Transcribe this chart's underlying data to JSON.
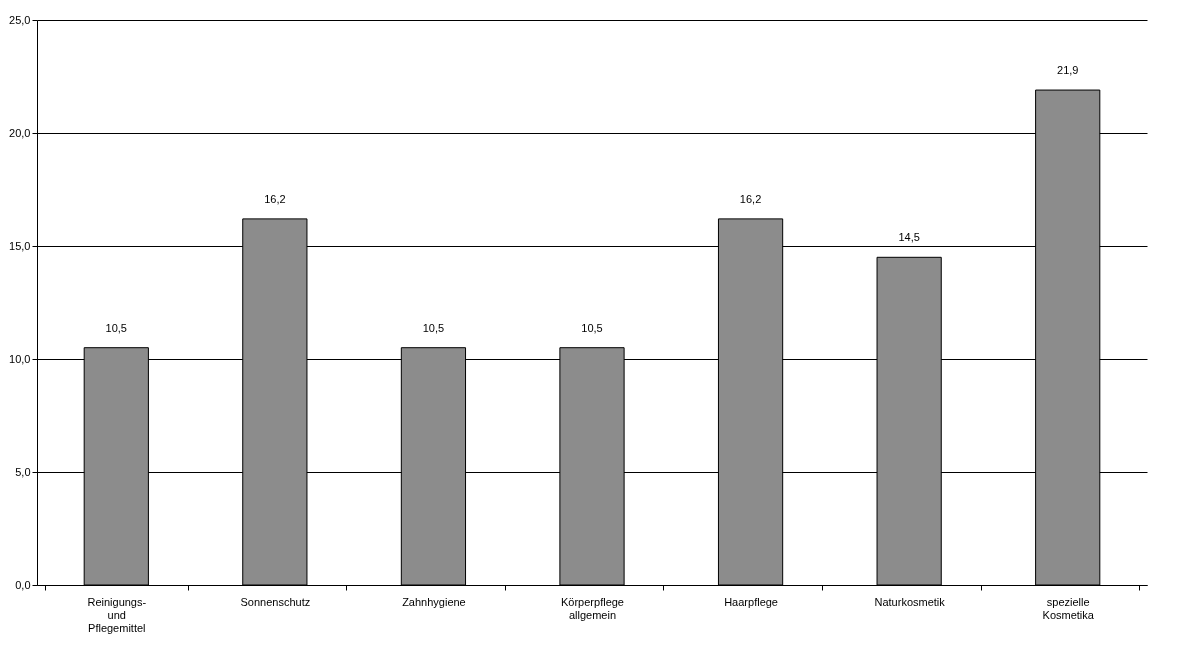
{
  "chart_data": {
    "type": "bar",
    "categories": [
      "Reinigungs- und Pflegemittel",
      "Sonnenschutz",
      "Zahnhygiene",
      "Körperpflege allgemein",
      "Haarpflege",
      "Naturkosmetik",
      "spezielle Kosmetika"
    ],
    "values": [
      10.5,
      16.2,
      10.5,
      10.5,
      16.2,
      14.5,
      21.9
    ],
    "value_labels": [
      "10,5",
      "16,2",
      "10,5",
      "10,5",
      "16,2",
      "14,5",
      "21,9"
    ],
    "color": "#8c8c8c",
    "ylim": [
      0,
      25
    ],
    "yticks": [
      {
        "value": 0,
        "label": "0,0"
      },
      {
        "value": 5,
        "label": "5,0"
      },
      {
        "value": 10,
        "label": "10,0"
      },
      {
        "value": 15,
        "label": "15,0"
      },
      {
        "value": 20,
        "label": "20,0"
      },
      {
        "value": 25,
        "label": "25,0"
      }
    ],
    "grid": "y"
  }
}
